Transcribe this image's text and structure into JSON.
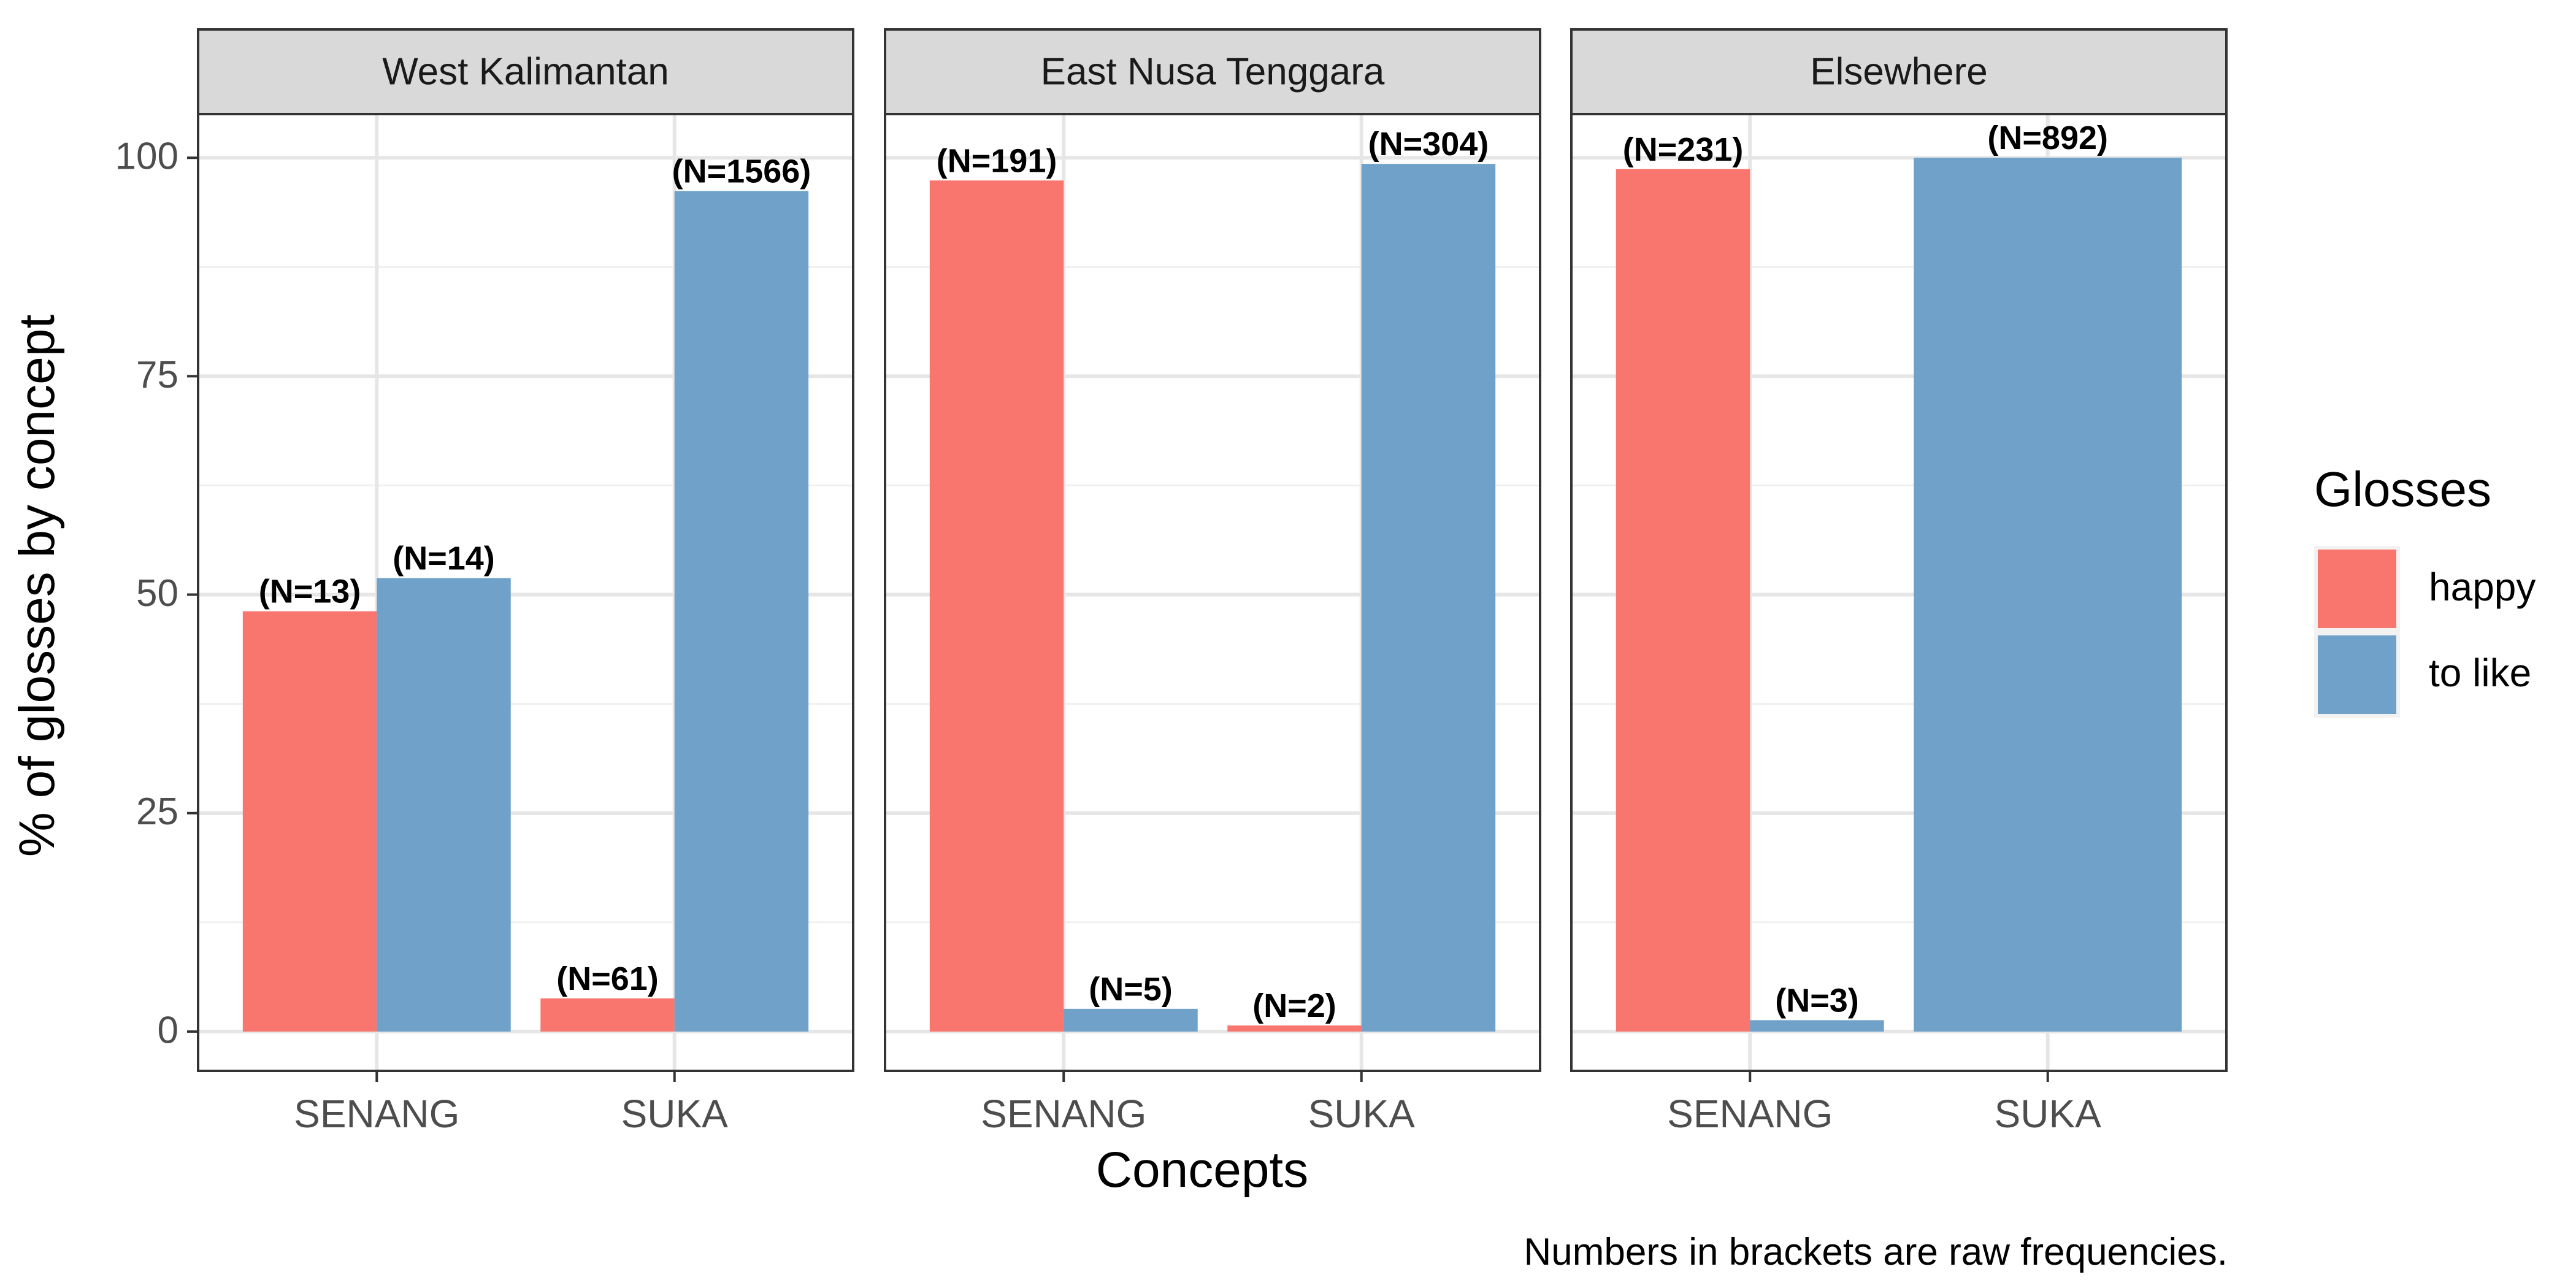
{
  "chart_data": {
    "type": "bar",
    "facets": [
      {
        "panel": "West Kalimantan",
        "bars": [
          {
            "concept": "SENANG",
            "gloss": "happy",
            "value": 48.1,
            "label": "(N=13)"
          },
          {
            "concept": "SENANG",
            "gloss": "to like",
            "value": 51.9,
            "label": "(N=14)"
          },
          {
            "concept": "SUKA",
            "gloss": "happy",
            "value": 3.8,
            "label": "(N=61)"
          },
          {
            "concept": "SUKA",
            "gloss": "to like",
            "value": 96.2,
            "label": "(N=1566)"
          }
        ]
      },
      {
        "panel": "East Nusa Tenggara",
        "bars": [
          {
            "concept": "SENANG",
            "gloss": "happy",
            "value": 97.4,
            "label": "(N=191)"
          },
          {
            "concept": "SENANG",
            "gloss": "to like",
            "value": 2.6,
            "label": "(N=5)"
          },
          {
            "concept": "SUKA",
            "gloss": "happy",
            "value": 0.7,
            "label": "(N=2)"
          },
          {
            "concept": "SUKA",
            "gloss": "to like",
            "value": 99.3,
            "label": "(N=304)"
          }
        ]
      },
      {
        "panel": "Elsewhere",
        "bars": [
          {
            "concept": "SENANG",
            "gloss": "happy",
            "value": 98.7,
            "label": "(N=231)"
          },
          {
            "concept": "SENANG",
            "gloss": "to like",
            "value": 1.3,
            "label": "(N=3)"
          },
          {
            "concept": "SUKA",
            "gloss": "to like",
            "value": 100,
            "label": "(N=892)"
          }
        ]
      }
    ],
    "categories": [
      "SENANG",
      "SUKA"
    ],
    "series": [
      {
        "name": "happy",
        "color": "#F8766D"
      },
      {
        "name": "to like",
        "color": "#6FA1C9"
      }
    ],
    "xlabel": "Concepts",
    "ylabel": "% of glosses by concept",
    "yticks": [
      0,
      25,
      50,
      75,
      100
    ],
    "ylim": [
      -4.5,
      105
    ],
    "legend_title": "Glosses",
    "legend_position": "right",
    "grid": true,
    "caption": "Numbers in brackets are raw frequencies."
  }
}
